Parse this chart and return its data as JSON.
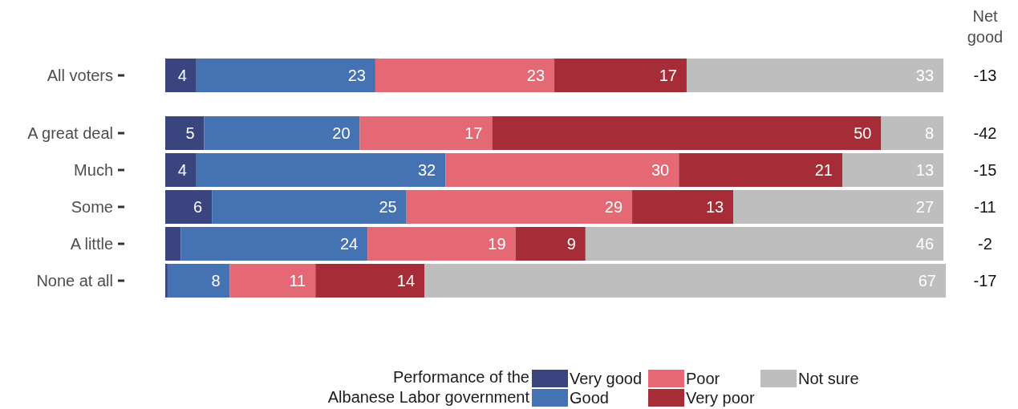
{
  "chart_data": {
    "type": "bar",
    "orientation": "horizontal",
    "stacked": true,
    "categories": [
      "All voters",
      "A great deal",
      "Much",
      "Some",
      "A little",
      "None at all"
    ],
    "series": [
      {
        "name": "Very good",
        "color": "#3a4580",
        "values": [
          4,
          5,
          4,
          6,
          2,
          0.3
        ],
        "value_labels": [
          "4",
          "5",
          "4",
          "6",
          null,
          null
        ]
      },
      {
        "name": "Good",
        "color": "#4472b2",
        "values": [
          23,
          20,
          32,
          25,
          24,
          8
        ],
        "value_labels": [
          "23",
          "20",
          "32",
          "25",
          "24",
          "8"
        ]
      },
      {
        "name": "Poor",
        "color": "#e46974",
        "values": [
          23,
          17,
          30,
          29,
          19,
          11
        ],
        "value_labels": [
          "23",
          "17",
          "30",
          "29",
          "19",
          "11"
        ]
      },
      {
        "name": "Very poor",
        "color": "#a62c37",
        "values": [
          17,
          50,
          21,
          13,
          9,
          14
        ],
        "value_labels": [
          "17",
          "50",
          "21",
          "13",
          "9",
          "14"
        ]
      },
      {
        "name": "Not sure",
        "color": "#bebebe",
        "values": [
          33,
          8,
          13,
          27,
          46,
          67
        ],
        "value_labels": [
          "33",
          "8",
          "13",
          "27",
          "46",
          "67"
        ]
      }
    ],
    "legend_title": "Performance of the Albanese Labor government",
    "legend": "bottom",
    "annotations": [
      "Net good",
      "-13",
      "-42",
      "-15",
      "-11",
      "-2",
      "-17"
    ]
  }
}
